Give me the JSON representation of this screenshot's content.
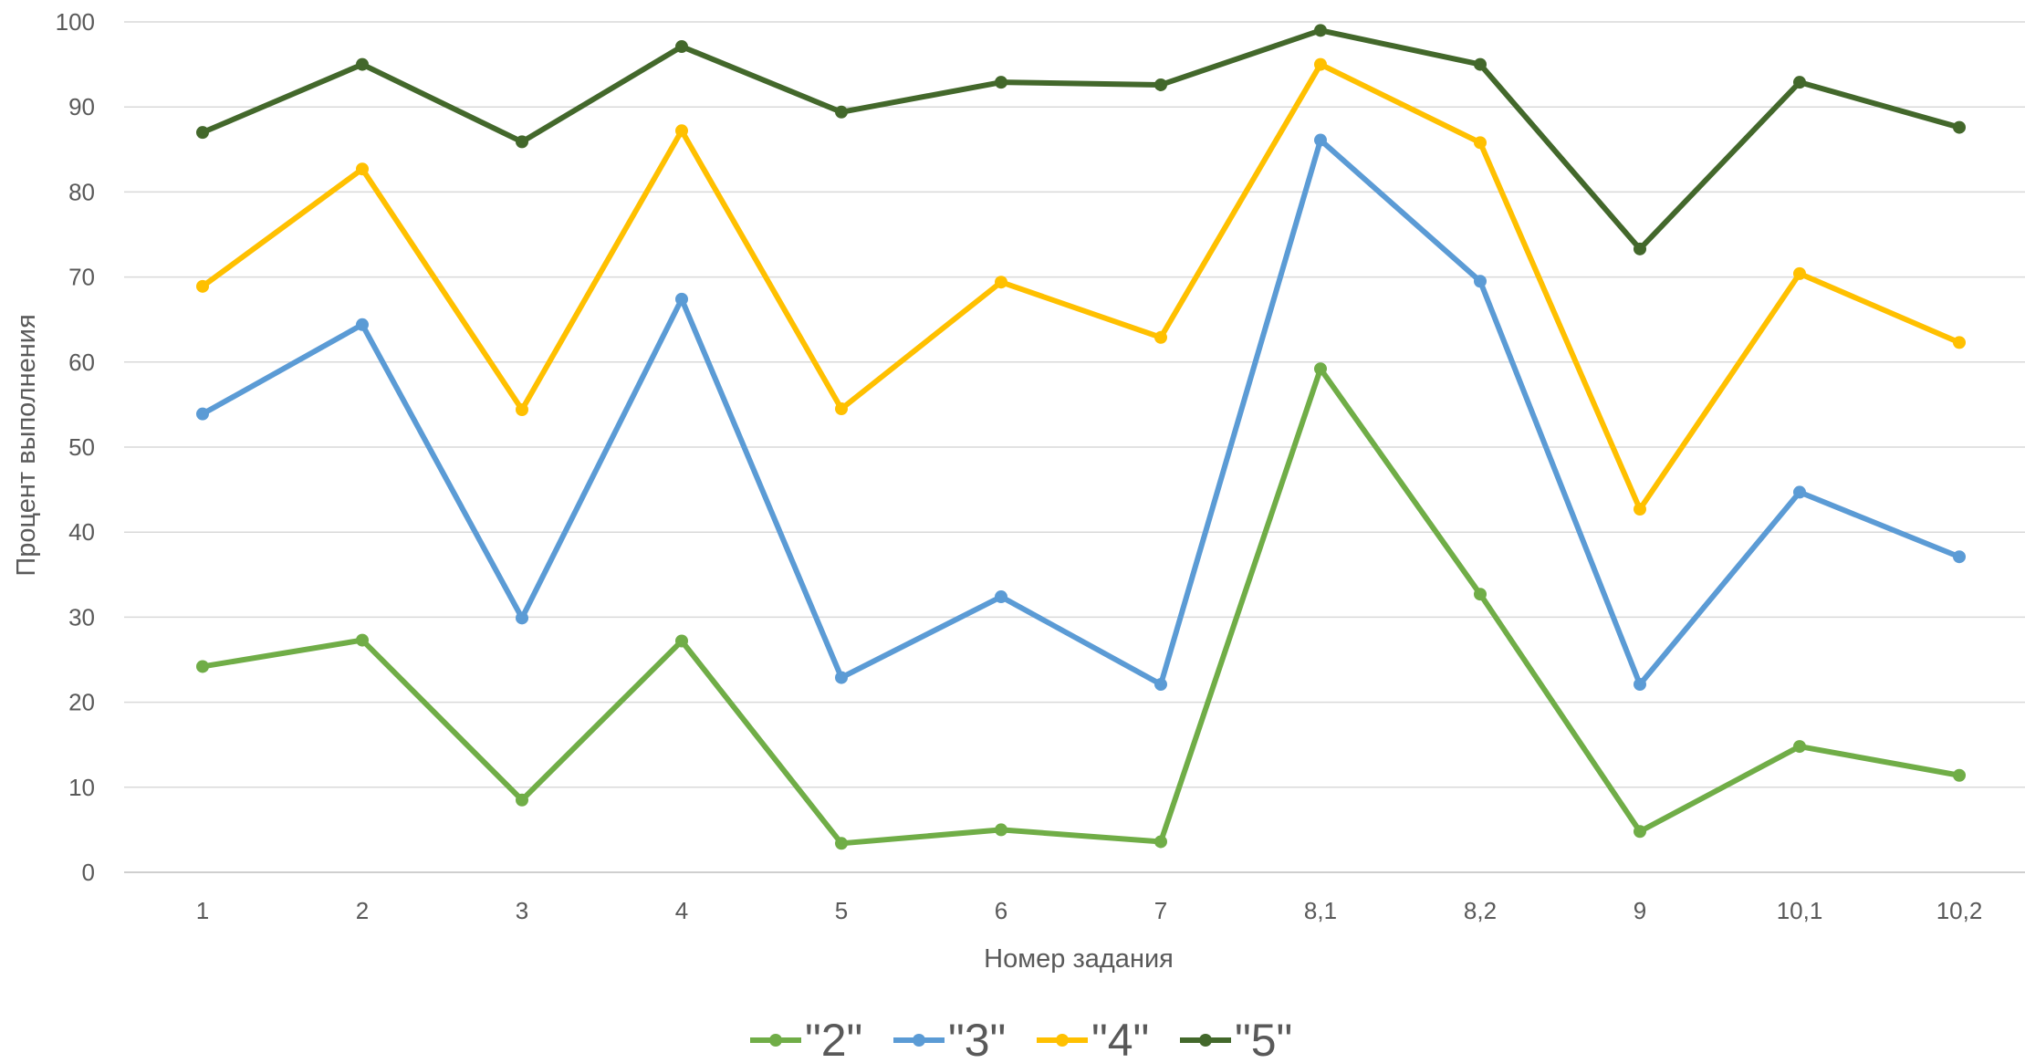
{
  "chart_data": {
    "type": "line",
    "title": "",
    "xlabel": "Номер задания",
    "ylabel": "Процент выполнения",
    "ylim": [
      0,
      100
    ],
    "yticks": [
      0,
      10,
      20,
      30,
      40,
      50,
      60,
      70,
      80,
      90,
      100
    ],
    "grid": "horizontal",
    "legend_position": "bottom",
    "categories": [
      "1",
      "2",
      "3",
      "4",
      "5",
      "6",
      "7",
      "8,1",
      "8,2",
      "9",
      "10,1",
      "10,2"
    ],
    "series": [
      {
        "name": "\"2\"",
        "color": "#70AD47",
        "values": [
          24.2,
          27.3,
          8.5,
          27.2,
          3.4,
          5.0,
          3.6,
          59.2,
          32.7,
          4.8,
          14.8,
          11.4
        ]
      },
      {
        "name": "\"3\"",
        "color": "#5B9BD5",
        "values": [
          53.9,
          64.4,
          29.9,
          67.4,
          22.9,
          32.4,
          22.1,
          86.1,
          69.5,
          22.1,
          44.7,
          37.1
        ]
      },
      {
        "name": "\"4\"",
        "color": "#FFC000",
        "values": [
          68.9,
          82.7,
          54.4,
          87.2,
          54.5,
          69.4,
          62.9,
          95.0,
          85.8,
          42.7,
          70.4,
          62.3
        ]
      },
      {
        "name": "\"5\"",
        "color": "#43682B",
        "values": [
          87.0,
          95.0,
          85.9,
          97.1,
          89.4,
          92.9,
          92.6,
          99.0,
          95.0,
          73.3,
          92.9,
          87.6
        ]
      }
    ]
  }
}
